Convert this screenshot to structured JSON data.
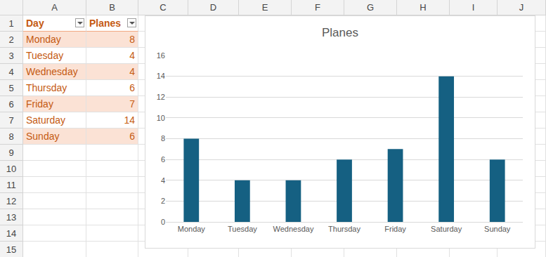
{
  "sheet": {
    "column_letters": [
      "A",
      "B",
      "C",
      "D",
      "E",
      "F",
      "G",
      "H",
      "I",
      "J"
    ],
    "row_numbers": [
      1,
      2,
      3,
      4,
      5,
      6,
      7,
      8,
      9,
      10,
      11,
      12,
      13,
      14,
      15
    ],
    "table": {
      "header": [
        "Day",
        "Planes"
      ],
      "rows": [
        [
          "Monday",
          8
        ],
        [
          "Tuesday",
          4
        ],
        [
          "Wednesday",
          4
        ],
        [
          "Thursday",
          6
        ],
        [
          "Friday",
          7
        ],
        [
          "Saturday",
          14
        ],
        [
          "Sunday",
          6
        ]
      ]
    }
  },
  "chart_data": {
    "type": "bar",
    "title": "Planes",
    "categories": [
      "Monday",
      "Tuesday",
      "Wednesday",
      "Thursday",
      "Friday",
      "Saturday",
      "Sunday"
    ],
    "values": [
      8,
      4,
      4,
      6,
      7,
      14,
      6
    ],
    "color": "#156082",
    "ylim": [
      0,
      16
    ],
    "yticks": [
      0,
      2,
      4,
      6,
      8,
      10,
      12,
      14,
      16
    ],
    "grid": true
  }
}
